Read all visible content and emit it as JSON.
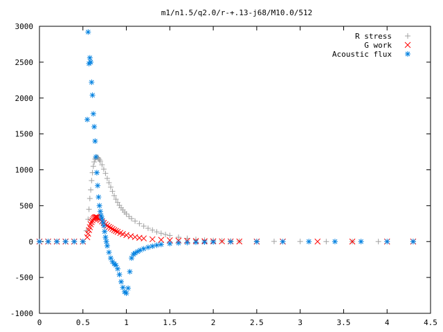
{
  "chart_data": {
    "type": "scatter",
    "title": "m1/n1.5/q2.0/r-+.13-j68/M10.0/512",
    "xlabel": "",
    "ylabel": "",
    "xlim": [
      0,
      4.5
    ],
    "ylim": [
      -1000,
      3000
    ],
    "grid": false,
    "legend_position": "top-right",
    "x_ticks": [
      0,
      0.5,
      1,
      1.5,
      2,
      2.5,
      3,
      3.5,
      4,
      4.5
    ],
    "x_tick_labels": [
      "0",
      "0.5",
      "1",
      "1.5",
      "2",
      "2.5",
      "3",
      "3.5",
      "4",
      "4.5"
    ],
    "y_ticks": [
      -1000,
      -500,
      0,
      500,
      1000,
      1500,
      2000,
      2500,
      3000
    ],
    "y_tick_labels": [
      "-1000",
      "-500",
      "0",
      "500",
      "1000",
      "1500",
      "2000",
      "2500",
      "3000"
    ],
    "series": [
      {
        "name": "R stress",
        "marker": "plus",
        "color": "#a0a0a0",
        "x": [
          0.0,
          0.1,
          0.2,
          0.3,
          0.4,
          0.5,
          0.54,
          0.56,
          0.57,
          0.58,
          0.59,
          0.6,
          0.61,
          0.62,
          0.63,
          0.64,
          0.65,
          0.66,
          0.67,
          0.68,
          0.69,
          0.7,
          0.72,
          0.74,
          0.76,
          0.78,
          0.8,
          0.82,
          0.84,
          0.86,
          0.88,
          0.9,
          0.92,
          0.94,
          0.96,
          0.98,
          1.0,
          1.03,
          1.06,
          1.1,
          1.15,
          1.2,
          1.25,
          1.3,
          1.35,
          1.4,
          1.45,
          1.5,
          1.6,
          1.7,
          1.8,
          1.9,
          2.0,
          2.1,
          2.2,
          2.3,
          2.5,
          2.7,
          3.0,
          3.3,
          3.6,
          3.9,
          4.3
        ],
        "y": [
          0,
          0,
          0,
          0,
          0,
          0,
          150,
          310,
          450,
          600,
          720,
          850,
          960,
          1050,
          1110,
          1150,
          1170,
          1175,
          1172,
          1160,
          1140,
          1120,
          1070,
          1010,
          950,
          880,
          820,
          760,
          700,
          640,
          590,
          545,
          505,
          470,
          440,
          410,
          385,
          350,
          320,
          285,
          250,
          215,
          185,
          160,
          135,
          115,
          98,
          85,
          60,
          45,
          30,
          20,
          15,
          10,
          8,
          5,
          3,
          2,
          1,
          0,
          0,
          0,
          0
        ]
      },
      {
        "name": "G work",
        "marker": "cross",
        "color": "#ff0000",
        "x": [
          0.0,
          0.1,
          0.2,
          0.3,
          0.4,
          0.5,
          0.55,
          0.56,
          0.57,
          0.58,
          0.59,
          0.6,
          0.61,
          0.62,
          0.63,
          0.64,
          0.65,
          0.66,
          0.67,
          0.68,
          0.69,
          0.7,
          0.72,
          0.74,
          0.76,
          0.78,
          0.8,
          0.82,
          0.84,
          0.86,
          0.88,
          0.9,
          0.93,
          0.96,
          1.0,
          1.05,
          1.1,
          1.15,
          1.2,
          1.3,
          1.4,
          1.5,
          1.6,
          1.7,
          1.8,
          1.9,
          2.0,
          2.1,
          2.2,
          2.3,
          2.5,
          2.8,
          3.2,
          3.6,
          4.0,
          4.3
        ],
        "y": [
          0,
          0,
          0,
          0,
          0,
          0,
          60,
          110,
          160,
          200,
          240,
          270,
          295,
          315,
          330,
          338,
          342,
          340,
          335,
          325,
          315,
          300,
          280,
          260,
          240,
          222,
          205,
          190,
          175,
          160,
          148,
          135,
          120,
          105,
          90,
          75,
          62,
          52,
          44,
          32,
          24,
          18,
          13,
          10,
          7,
          5,
          4,
          3,
          2,
          1,
          0,
          0,
          0,
          0,
          0,
          0
        ]
      },
      {
        "name": "Acoustic flux",
        "marker": "star",
        "color": "#0080e0",
        "x": [
          0.0,
          0.1,
          0.2,
          0.3,
          0.4,
          0.5,
          0.55,
          0.56,
          0.57,
          0.58,
          0.59,
          0.6,
          0.61,
          0.62,
          0.63,
          0.64,
          0.65,
          0.66,
          0.67,
          0.68,
          0.69,
          0.7,
          0.71,
          0.72,
          0.73,
          0.74,
          0.75,
          0.76,
          0.77,
          0.78,
          0.8,
          0.82,
          0.84,
          0.86,
          0.88,
          0.9,
          0.92,
          0.94,
          0.96,
          0.98,
          1.0,
          1.02,
          1.04,
          1.06,
          1.08,
          1.1,
          1.13,
          1.16,
          1.2,
          1.25,
          1.3,
          1.35,
          1.4,
          1.5,
          1.6,
          1.7,
          1.8,
          1.9,
          2.0,
          2.2,
          2.5,
          2.8,
          3.1,
          3.4,
          3.7,
          4.0,
          4.3
        ],
        "y": [
          0,
          0,
          0,
          0,
          0,
          0,
          1700,
          2920,
          2480,
          2560,
          2500,
          2220,
          2040,
          1780,
          1600,
          1400,
          1180,
          960,
          780,
          620,
          500,
          420,
          360,
          320,
          270,
          220,
          140,
          60,
          0,
          -60,
          -150,
          -230,
          -280,
          -310,
          -330,
          -380,
          -460,
          -560,
          -640,
          -700,
          -720,
          -650,
          -420,
          -230,
          -180,
          -160,
          -140,
          -120,
          -100,
          -80,
          -65,
          -50,
          -40,
          -28,
          -20,
          -14,
          -10,
          -7,
          -5,
          -3,
          -2,
          -1,
          0,
          0,
          0,
          0,
          0
        ]
      }
    ]
  }
}
